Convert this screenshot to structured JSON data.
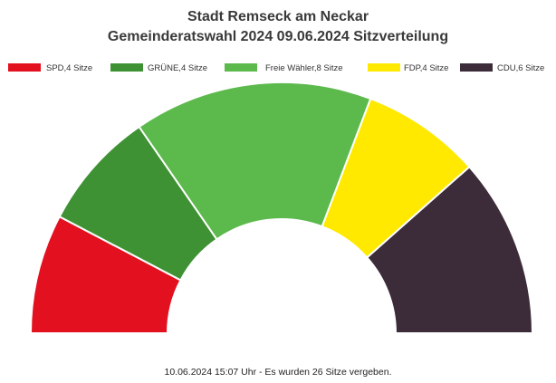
{
  "chart_data": {
    "type": "pie",
    "variant": "parliament-semicircle",
    "title_lines": [
      "Stadt Remseck am Neckar",
      "Gemeinderatswahl 2024 09.06.2024 Sitzverteilung"
    ],
    "legend_placement": "top",
    "series": [
      {
        "name": "SPD",
        "value": 4,
        "legend_label": "SPD,4 Sitze",
        "color": "#e3101f"
      },
      {
        "name": "GRÜNE",
        "value": 4,
        "legend_label": "GRÜNE,4 Sitze",
        "color": "#3f9234"
      },
      {
        "name": "Freie Wähler",
        "value": 8,
        "legend_label": "Freie Wähler,8 Sitze",
        "color": "#5cb94c"
      },
      {
        "name": "FDP",
        "value": 4,
        "legend_label": "FDP,4 Sitze",
        "color": "#ffe900"
      },
      {
        "name": "CDU",
        "value": 6,
        "legend_label": "CDU,6 Sitze",
        "color": "#3c2b39"
      }
    ],
    "total": 26,
    "footer": "10.06.2024 15:07 Uhr - Es wurden 26 Sitze vergeben."
  }
}
